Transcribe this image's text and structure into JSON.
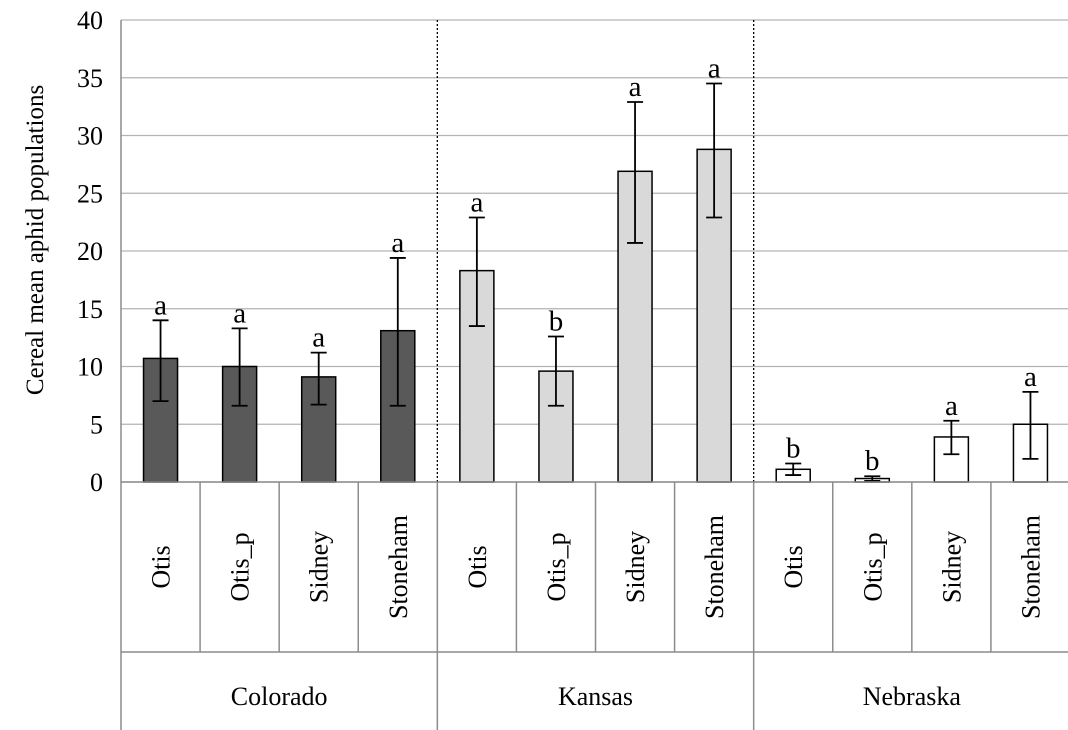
{
  "chart_data": {
    "type": "bar",
    "title": "",
    "ylabel": "Cereal mean aphid populations",
    "xlabel": "",
    "ylim": [
      0,
      40
    ],
    "yticks": [
      0,
      5,
      10,
      15,
      20,
      25,
      30,
      35,
      40
    ],
    "gridlines": true,
    "legend": "none",
    "groups": [
      {
        "name": "Colorado",
        "color": "#595959",
        "bars": [
          {
            "category": "Otis",
            "value": 10.7,
            "err_low": 7.0,
            "err_high": 14.0,
            "letter": "a"
          },
          {
            "category": "Otis_p",
            "value": 10.0,
            "err_low": 6.6,
            "err_high": 13.3,
            "letter": "a"
          },
          {
            "category": "Sidney",
            "value": 9.1,
            "err_low": 6.7,
            "err_high": 11.2,
            "letter": "a"
          },
          {
            "category": "Stoneham",
            "value": 13.1,
            "err_low": 6.6,
            "err_high": 19.4,
            "letter": "a"
          }
        ]
      },
      {
        "name": "Kansas",
        "color": "#d9d9d9",
        "bars": [
          {
            "category": "Otis",
            "value": 18.3,
            "err_low": 13.5,
            "err_high": 22.9,
            "letter": "a"
          },
          {
            "category": "Otis_p",
            "value": 9.6,
            "err_low": 6.6,
            "err_high": 12.6,
            "letter": "b"
          },
          {
            "category": "Sidney",
            "value": 26.9,
            "err_low": 20.7,
            "err_high": 32.9,
            "letter": "a"
          },
          {
            "category": "Stoneham",
            "value": 28.8,
            "err_low": 22.9,
            "err_high": 34.5,
            "letter": "a"
          }
        ]
      },
      {
        "name": "Nebraska",
        "color": "#ffffff",
        "bars": [
          {
            "category": "Otis",
            "value": 1.1,
            "err_low": 0.6,
            "err_high": 1.6,
            "letter": "b"
          },
          {
            "category": "Otis_p",
            "value": 0.3,
            "err_low": 0.1,
            "err_high": 0.5,
            "letter": "b"
          },
          {
            "category": "Sidney",
            "value": 3.9,
            "err_low": 2.4,
            "err_high": 5.3,
            "letter": "a"
          },
          {
            "category": "Stoneham",
            "value": 5.0,
            "err_low": 2.0,
            "err_high": 7.8,
            "letter": "a"
          }
        ]
      }
    ]
  }
}
